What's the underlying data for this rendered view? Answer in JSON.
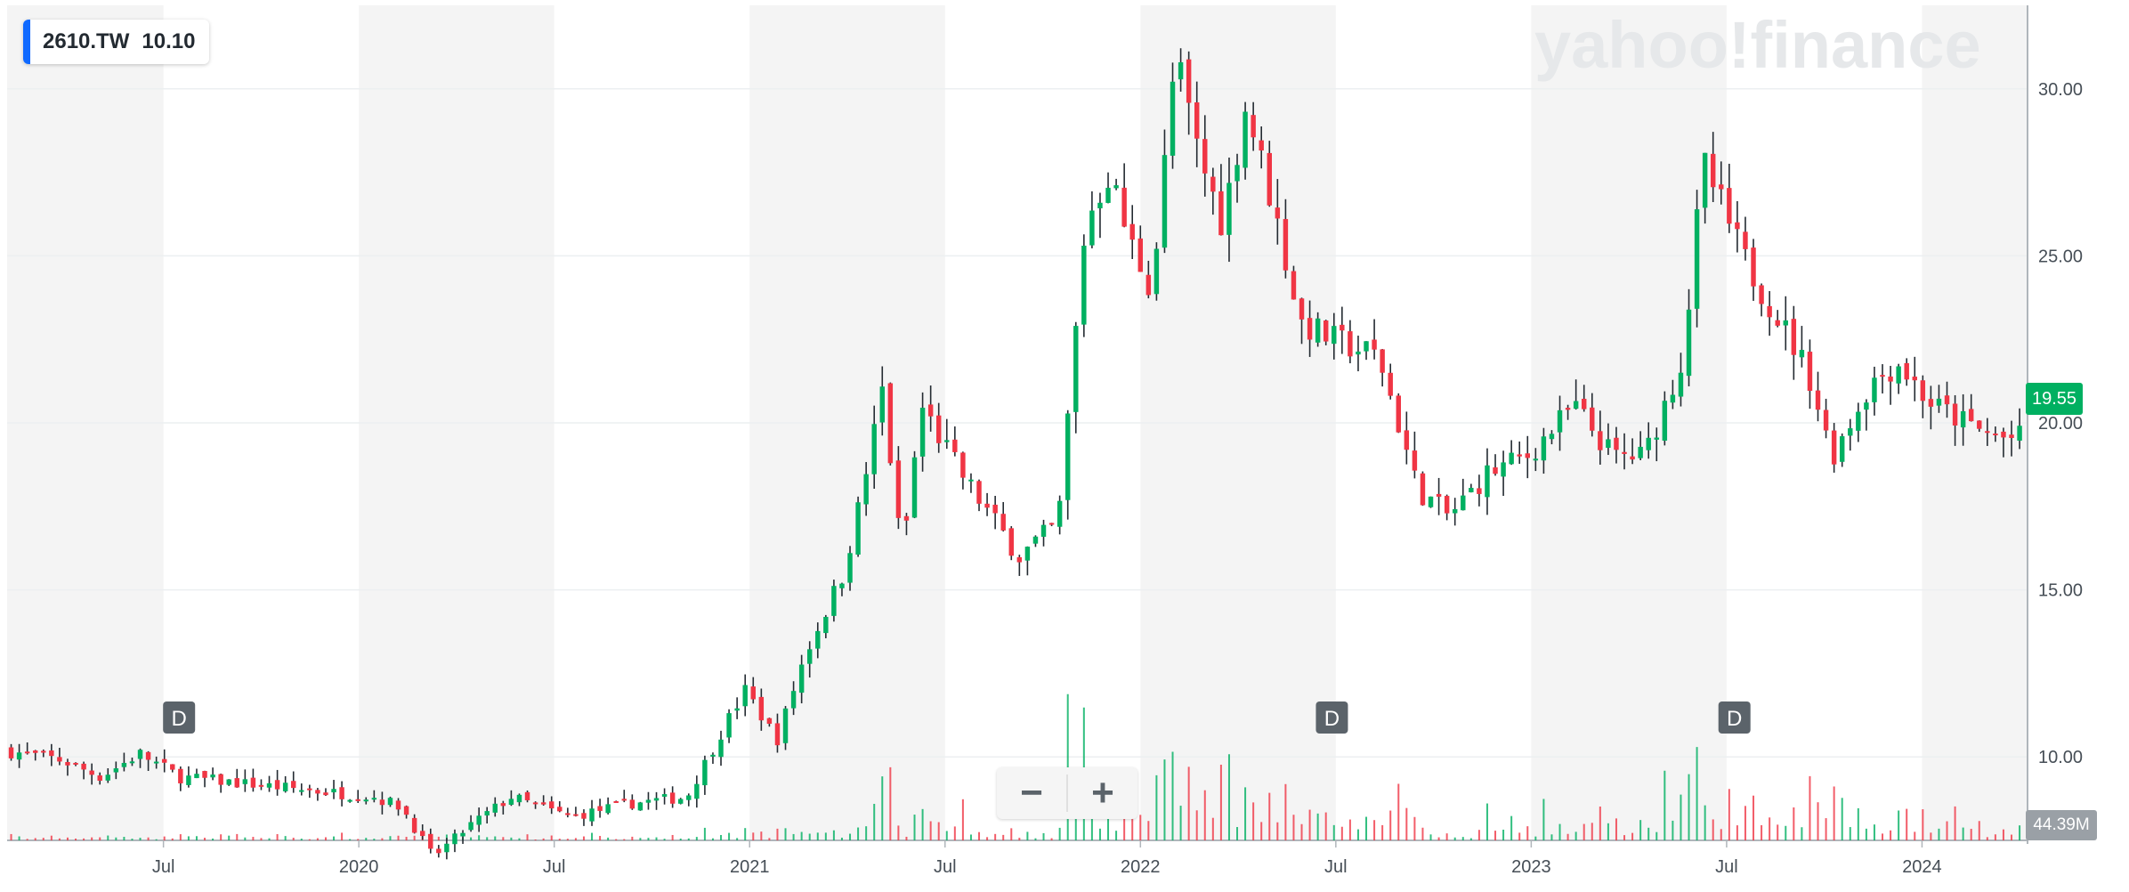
{
  "ticker": {
    "symbol": "2610.TW",
    "value": "10.10"
  },
  "watermark": "yahoo!finance",
  "current_price": "19.55",
  "volume_label": "44.39M",
  "zoom": {
    "out_label": "−",
    "in_label": "+"
  },
  "dividend_marker": "D",
  "colors": {
    "up": "#00b061",
    "down": "#f03544",
    "wick": "#232a31",
    "shade": "#f4f4f4",
    "grid": "#eceff1"
  },
  "chart_data": {
    "type": "candlestick",
    "y_ticks": [
      "30.00",
      "25.00",
      "20.00",
      "15.00",
      "10.00"
    ],
    "y_tick_values": [
      30,
      25,
      20,
      15,
      10
    ],
    "x_ticks": [
      {
        "label": "Jul",
        "t": 2019.5
      },
      {
        "label": "2020",
        "t": 2020.0
      },
      {
        "label": "Jul",
        "t": 2020.5
      },
      {
        "label": "2021",
        "t": 2021.0
      },
      {
        "label": "Jul",
        "t": 2021.5
      },
      {
        "label": "2022",
        "t": 2022.0
      },
      {
        "label": "Jul",
        "t": 2022.5
      },
      {
        "label": "2023",
        "t": 2023.0
      },
      {
        "label": "Jul",
        "t": 2023.5
      },
      {
        "label": "2024",
        "t": 2024.0
      }
    ],
    "x_range": [
      2019.1,
      2024.27
    ],
    "y_range": [
      7.5,
      32.5
    ],
    "dividends": [
      2019.54,
      2022.49,
      2023.52
    ],
    "series_anchors": [
      [
        2019.1,
        10.2
      ],
      [
        2019.25,
        9.9
      ],
      [
        2019.35,
        9.4
      ],
      [
        2019.45,
        10.1
      ],
      [
        2019.55,
        9.4
      ],
      [
        2019.8,
        9.1
      ],
      [
        2020.05,
        8.8
      ],
      [
        2020.12,
        8.5
      ],
      [
        2020.2,
        7.0
      ],
      [
        2020.3,
        8.0
      ],
      [
        2020.4,
        8.8
      ],
      [
        2020.55,
        8.2
      ],
      [
        2020.7,
        8.6
      ],
      [
        2020.85,
        8.8
      ],
      [
        2020.95,
        11.0
      ],
      [
        2021.0,
        12.0
      ],
      [
        2021.08,
        10.5
      ],
      [
        2021.15,
        13.0
      ],
      [
        2021.25,
        15.5
      ],
      [
        2021.3,
        18.0
      ],
      [
        2021.35,
        21.0
      ],
      [
        2021.4,
        16.0
      ],
      [
        2021.45,
        20.5
      ],
      [
        2021.55,
        18.5
      ],
      [
        2021.7,
        16.0
      ],
      [
        2021.8,
        17.0
      ],
      [
        2021.87,
        26.0
      ],
      [
        2021.93,
        27.5
      ],
      [
        2021.98,
        25.5
      ],
      [
        2022.04,
        24.0
      ],
      [
        2022.1,
        31.0
      ],
      [
        2022.16,
        28.0
      ],
      [
        2022.22,
        26.0
      ],
      [
        2022.28,
        29.5
      ],
      [
        2022.35,
        26.5
      ],
      [
        2022.42,
        23.0
      ],
      [
        2022.5,
        22.5
      ],
      [
        2022.62,
        22.0
      ],
      [
        2022.72,
        18.0
      ],
      [
        2022.8,
        17.2
      ],
      [
        2022.9,
        18.5
      ],
      [
        2023.0,
        19.0
      ],
      [
        2023.12,
        20.5
      ],
      [
        2023.22,
        19.0
      ],
      [
        2023.3,
        19.0
      ],
      [
        2023.4,
        22.0
      ],
      [
        2023.45,
        27.8
      ],
      [
        2023.55,
        25.0
      ],
      [
        2023.65,
        23.0
      ],
      [
        2023.72,
        21.5
      ],
      [
        2023.78,
        19.0
      ],
      [
        2023.88,
        21.2
      ],
      [
        2023.95,
        21.8
      ],
      [
        2024.03,
        20.6
      ],
      [
        2024.15,
        19.8
      ],
      [
        2024.22,
        19.55
      ]
    ],
    "volume_max": "44.39M"
  }
}
